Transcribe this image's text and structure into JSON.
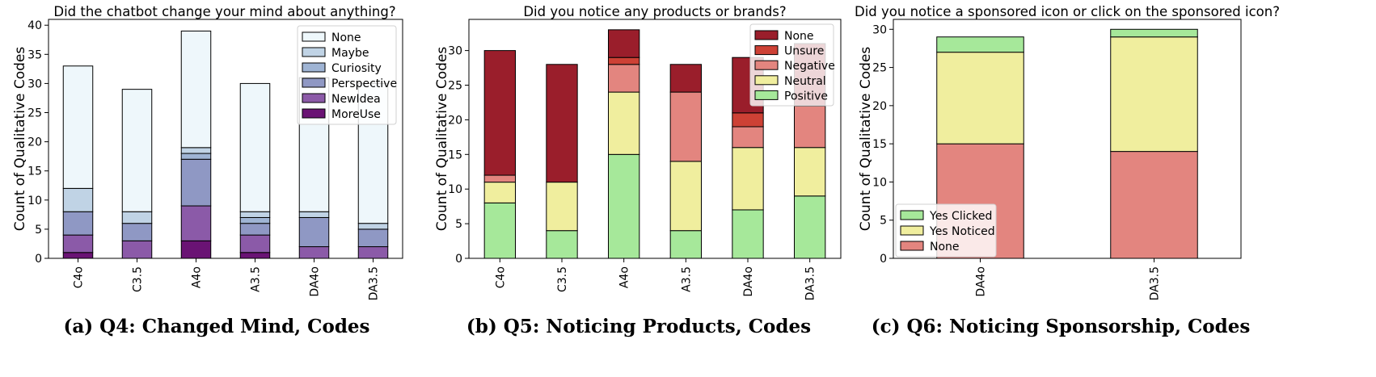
{
  "chart_data": [
    {
      "type": "bar",
      "stacked": true,
      "title": "Did the chatbot change your mind about anything?",
      "caption": "(a) Q4: Changed Mind, Codes",
      "ylabel": "Count of Qualitative Codes",
      "xlabel": "",
      "categories": [
        "C4o",
        "C3.5",
        "A4o",
        "A3.5",
        "DA4o",
        "DA3.5"
      ],
      "ylim": [
        0,
        41
      ],
      "yticks": [
        0,
        5,
        10,
        15,
        20,
        25,
        30,
        35,
        40
      ],
      "legend_position": "top-right",
      "grid": false,
      "series": [
        {
          "name": "MoreUse",
          "color": "#6a1374",
          "values": [
            1,
            0,
            3,
            1,
            0,
            0
          ]
        },
        {
          "name": "NewIdea",
          "color": "#8b5aa8",
          "values": [
            3,
            3,
            6,
            3,
            2,
            2
          ]
        },
        {
          "name": "Perspective",
          "color": "#8f98c4",
          "values": [
            4,
            3,
            8,
            2,
            5,
            3
          ]
        },
        {
          "name": "Curiosity",
          "color": "#9fb4d4",
          "values": [
            0,
            0,
            1,
            1,
            0,
            0
          ]
        },
        {
          "name": "Maybe",
          "color": "#c0d3e5",
          "values": [
            4,
            2,
            1,
            1,
            1,
            1
          ]
        },
        {
          "name": "None",
          "color": "#eef7fb",
          "values": [
            21,
            21,
            20,
            22,
            23,
            24
          ]
        }
      ],
      "legend_order": [
        "None",
        "Maybe",
        "Curiosity",
        "Perspective",
        "NewIdea",
        "MoreUse"
      ]
    },
    {
      "type": "bar",
      "stacked": true,
      "title": "Did you notice any products or brands?",
      "caption": "(b) Q5: Noticing Products, Codes",
      "ylabel": "Count of Qualitative Codes",
      "xlabel": "",
      "categories": [
        "C4o",
        "C3.5",
        "A4o",
        "A3.5",
        "DA4o",
        "DA3.5"
      ],
      "ylim": [
        0,
        34.5
      ],
      "yticks": [
        0,
        5,
        10,
        15,
        20,
        25,
        30
      ],
      "legend_position": "top-right",
      "grid": false,
      "series": [
        {
          "name": "Positive",
          "color": "#a6e89a",
          "values": [
            8,
            4,
            15,
            4,
            7,
            9
          ]
        },
        {
          "name": "Neutral",
          "color": "#f0ee9e",
          "values": [
            3,
            7,
            9,
            10,
            9,
            7
          ]
        },
        {
          "name": "Negative",
          "color": "#e3857f",
          "values": [
            1,
            0,
            4,
            10,
            3,
            6
          ]
        },
        {
          "name": "Unsure",
          "color": "#cd4135",
          "values": [
            0,
            0,
            1,
            0,
            2,
            0
          ]
        },
        {
          "name": "None",
          "color": "#9a1e2b",
          "values": [
            18,
            17,
            4,
            4,
            8,
            9
          ]
        }
      ],
      "legend_order": [
        "None",
        "Unsure",
        "Negative",
        "Neutral",
        "Positive"
      ]
    },
    {
      "type": "bar",
      "stacked": true,
      "title": "Did you notice a sponsored icon or click on the sponsored icon?",
      "caption": "(c) Q6: Noticing Sponsorship, Codes",
      "ylabel": "Count of Qualitative Codes",
      "xlabel": "",
      "categories": [
        "DA4o",
        "DA3.5"
      ],
      "ylim": [
        0,
        31.3
      ],
      "yticks": [
        0,
        5,
        10,
        15,
        20,
        25,
        30
      ],
      "legend_position": "bottom-left",
      "grid": false,
      "series": [
        {
          "name": "None",
          "color": "#e3857f",
          "values": [
            15,
            14
          ]
        },
        {
          "name": "Yes Noticed",
          "color": "#f0ee9e",
          "values": [
            12,
            15
          ]
        },
        {
          "name": "Yes Clicked",
          "color": "#a6e89a",
          "values": [
            2,
            1
          ]
        }
      ],
      "legend_order": [
        "Yes Clicked",
        "Yes Noticed",
        "None"
      ]
    }
  ]
}
